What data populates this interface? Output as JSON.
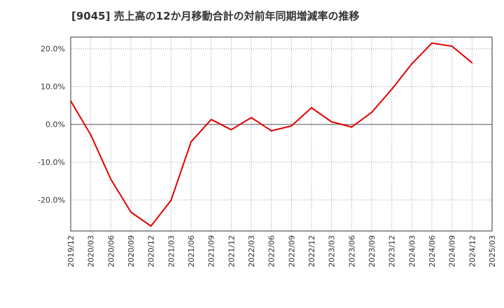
{
  "chart_data": {
    "type": "line",
    "title": "[9045]  売上高の12か月移動合計の対前年同期増減率の推移",
    "xlabel": "",
    "ylabel": "",
    "x": [
      "2019/12",
      "2020/03",
      "2020/06",
      "2020/09",
      "2020/12",
      "2021/03",
      "2021/06",
      "2021/09",
      "2021/12",
      "2022/03",
      "2022/06",
      "2022/09",
      "2022/12",
      "2023/03",
      "2023/06",
      "2023/09",
      "2023/12",
      "2024/03",
      "2024/06",
      "2024/09",
      "2024/12",
      "2025/03"
    ],
    "series": [
      {
        "name": "売上高の12か月移動合計の対前年同期増減率",
        "color": "#e00000",
        "values": [
          6.2,
          -2.8,
          -14.5,
          -23.2,
          -26.9,
          -20.1,
          -4.6,
          1.3,
          -1.4,
          1.8,
          -1.7,
          -0.4,
          4.4,
          0.7,
          -0.7,
          3.2,
          9.3,
          16.0,
          21.5,
          20.7,
          16.3,
          null
        ]
      }
    ],
    "yticks": [
      20,
      10,
      0,
      -10,
      -20
    ],
    "ytick_labels": [
      "20.0%",
      "10.0%",
      "0.0%",
      "-10.0%",
      "-20.0%"
    ],
    "ylim": [
      -28.2,
      23.1
    ],
    "grid": true
  }
}
